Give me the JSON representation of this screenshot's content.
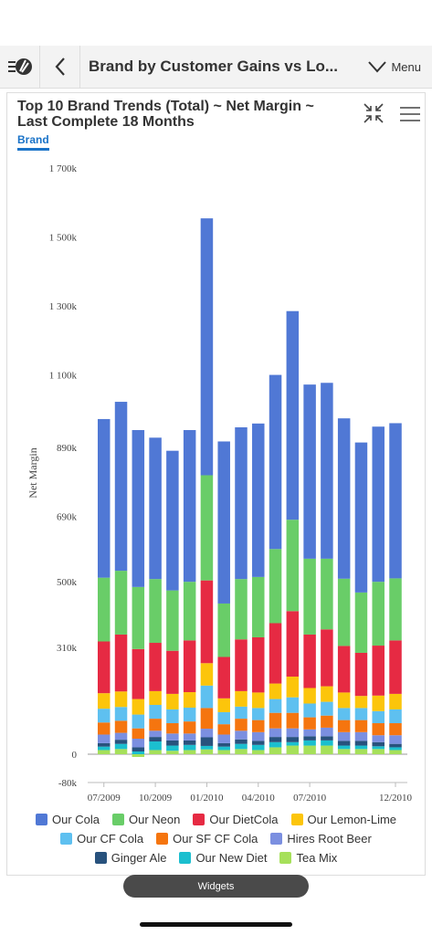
{
  "header": {
    "title": "Brand by Customer Gains vs Lo...",
    "menu_label": "Menu"
  },
  "card": {
    "title": "Top 10 Brand Trends (Total) ~ Net Margin ~ Last Complete 18 Months",
    "tab_label": "Brand"
  },
  "footer": {
    "widgets_label": "Widgets"
  },
  "chart_data": {
    "type": "bar",
    "stacked": true,
    "ylabel": "Net Margin",
    "xlabel": "",
    "ylim": [
      -80000,
      1700000
    ],
    "yticks": [
      -80000,
      0,
      310000,
      500000,
      690000,
      890000,
      1100000,
      1300000,
      1500000,
      1700000
    ],
    "ytick_labels": [
      "-80k",
      "0",
      "310k",
      "500k",
      "690k",
      "890k",
      "1 100k",
      "1 300k",
      "1 500k",
      "1 700k"
    ],
    "categories": [
      "07/2009",
      "08/2009",
      "09/2009",
      "10/2009",
      "11/2009",
      "12/2009",
      "01/2010",
      "02/2010",
      "03/2010",
      "04/2010",
      "05/2010",
      "06/2010",
      "07/2010",
      "08/2010",
      "09/2010",
      "10/2010",
      "11/2010",
      "12/2010"
    ],
    "xtick_labels": {
      "0": "07/2009",
      "3": "10/2009",
      "6": "01/2010",
      "9": "04/2010",
      "12": "07/2010",
      "17": "12/2010"
    },
    "series": [
      {
        "name": "Tea Mix",
        "color": "#a6e05a",
        "values": [
          12000,
          15000,
          -8000,
          12000,
          10000,
          12000,
          14000,
          12000,
          15000,
          12000,
          20000,
          25000,
          25000,
          25000,
          15000,
          15000,
          15000,
          12000
        ]
      },
      {
        "name": "Our New Diet",
        "color": "#1bbfcf",
        "values": [
          10000,
          15000,
          8000,
          25000,
          15000,
          15000,
          10000,
          10000,
          15000,
          15000,
          15000,
          10000,
          15000,
          15000,
          10000,
          10000,
          8000,
          8000
        ]
      },
      {
        "name": "Ginger Ale",
        "color": "#28527d",
        "values": [
          10000,
          12000,
          12000,
          13000,
          15000,
          13000,
          25000,
          10000,
          13000,
          12000,
          15000,
          15000,
          12000,
          12000,
          14000,
          14000,
          12000,
          10000
        ]
      },
      {
        "name": "Hires Root Beer",
        "color": "#7b8fe0",
        "values": [
          25000,
          20000,
          25000,
          18000,
          20000,
          20000,
          25000,
          25000,
          25000,
          25000,
          25000,
          25000,
          20000,
          25000,
          25000,
          25000,
          20000,
          25000
        ]
      },
      {
        "name": "Our SF CF Cola",
        "color": "#f5750f",
        "values": [
          35000,
          35000,
          30000,
          35000,
          30000,
          35000,
          60000,
          30000,
          35000,
          35000,
          45000,
          45000,
          35000,
          35000,
          35000,
          35000,
          35000,
          35000
        ]
      },
      {
        "name": "Our CF Cola",
        "color": "#5ec0f0",
        "values": [
          40000,
          40000,
          40000,
          40000,
          40000,
          40000,
          65000,
          35000,
          35000,
          35000,
          40000,
          45000,
          40000,
          40000,
          35000,
          35000,
          35000,
          40000
        ]
      },
      {
        "name": "Our Lemon-Lime",
        "color": "#fcc50b",
        "values": [
          45000,
          45000,
          45000,
          40000,
          45000,
          45000,
          65000,
          40000,
          45000,
          45000,
          45000,
          60000,
          45000,
          45000,
          45000,
          35000,
          45000,
          45000
        ]
      },
      {
        "name": "Our DietCola",
        "color": "#e62a43",
        "values": [
          150000,
          165000,
          145000,
          140000,
          125000,
          150000,
          240000,
          120000,
          150000,
          160000,
          175000,
          190000,
          155000,
          165000,
          135000,
          125000,
          145000,
          155000
        ]
      },
      {
        "name": "Our Neon",
        "color": "#69cd68",
        "values": [
          185000,
          185000,
          180000,
          185000,
          175000,
          170000,
          305000,
          155000,
          175000,
          175000,
          215000,
          265000,
          220000,
          205000,
          195000,
          175000,
          185000,
          180000
        ]
      },
      {
        "name": "Our Cola",
        "color": "#5078d5",
        "values": [
          460000,
          490000,
          455000,
          410000,
          405000,
          440000,
          745000,
          470000,
          440000,
          445000,
          505000,
          605000,
          505000,
          510000,
          465000,
          435000,
          450000,
          450000
        ]
      }
    ]
  }
}
